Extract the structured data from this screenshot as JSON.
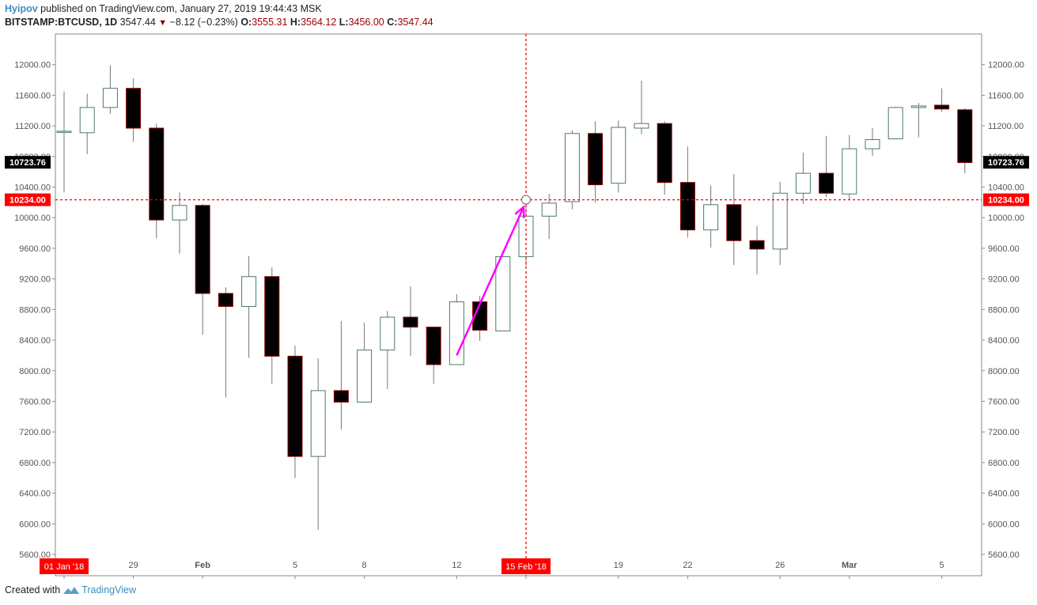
{
  "header": {
    "author": "Hyipov",
    "published_text": "published on TradingView.com, January 27, 2019 19:44:43 MSK",
    "symbol": "BITSTAMP:BTCUSD, 1D",
    "last_price": "3547.44",
    "change": "−8.12 (−0.23%)",
    "open_label": "O:",
    "open": "3555.31",
    "high_label": "H:",
    "high": "3564.12",
    "low_label": "L:",
    "low": "3456.00",
    "close_label": "C:",
    "close": "3547.44"
  },
  "footer": {
    "created_with": "Created with",
    "brand": "TradingView"
  },
  "colors": {
    "up_fill": "#ffffff",
    "up_border": "#4a7a6a",
    "down_fill": "#000000",
    "down_border": "#8b0000",
    "crosshair": "#ff0000",
    "arrow": "#ff00ff",
    "price_tag_black": "#000000",
    "price_tag_red": "#ff0000"
  },
  "chart_data": {
    "type": "candlestick",
    "ylim": [
      5600,
      12400
    ],
    "y_ticks": [
      "12000.00",
      "11600.00",
      "11200.00",
      "10800.00",
      "10400.00",
      "10000.00",
      "9600.00",
      "9200.00",
      "8800.00",
      "8400.00",
      "8000.00",
      "7600.00",
      "7200.00",
      "6800.00",
      "6400.00",
      "6000.00",
      "5600.00"
    ],
    "x_ticks": [
      {
        "label": "01 Jan '18",
        "index": 0,
        "highlight": true
      },
      {
        "label": "29",
        "index": 3
      },
      {
        "label": "Feb",
        "index": 6,
        "bold": true
      },
      {
        "label": "5",
        "index": 10
      },
      {
        "label": "8",
        "index": 13
      },
      {
        "label": "12",
        "index": 17
      },
      {
        "label": "15 Feb '18",
        "index": 20,
        "highlight": true
      },
      {
        "label": "19",
        "index": 24
      },
      {
        "label": "22",
        "index": 27
      },
      {
        "label": "26",
        "index": 31
      },
      {
        "label": "Mar",
        "index": 34,
        "bold": true
      },
      {
        "label": "5",
        "index": 38
      }
    ],
    "candles": [
      {
        "o": 11120,
        "h": 11650,
        "l": 10330,
        "c": 11130
      },
      {
        "o": 11110,
        "h": 11620,
        "l": 10830,
        "c": 11440
      },
      {
        "o": 11440,
        "h": 11990,
        "l": 11360,
        "c": 11690
      },
      {
        "o": 11690,
        "h": 11820,
        "l": 10990,
        "c": 11170
      },
      {
        "o": 11170,
        "h": 11230,
        "l": 9730,
        "c": 9970
      },
      {
        "o": 9970,
        "h": 10330,
        "l": 9530,
        "c": 10160
      },
      {
        "o": 10160,
        "h": 10180,
        "l": 8470,
        "c": 9010
      },
      {
        "o": 9010,
        "h": 9090,
        "l": 7650,
        "c": 8840
      },
      {
        "o": 8840,
        "h": 9500,
        "l": 8170,
        "c": 9230
      },
      {
        "o": 9230,
        "h": 9350,
        "l": 7830,
        "c": 8190
      },
      {
        "o": 8190,
        "h": 8330,
        "l": 6600,
        "c": 6880
      },
      {
        "o": 6880,
        "h": 8160,
        "l": 5920,
        "c": 7740
      },
      {
        "o": 7740,
        "h": 8650,
        "l": 7230,
        "c": 7590
      },
      {
        "o": 7590,
        "h": 8630,
        "l": 7590,
        "c": 8270
      },
      {
        "o": 8270,
        "h": 8780,
        "l": 7760,
        "c": 8700
      },
      {
        "o": 8700,
        "h": 9100,
        "l": 8190,
        "c": 8570
      },
      {
        "o": 8570,
        "h": 8570,
        "l": 7830,
        "c": 8080
      },
      {
        "o": 8080,
        "h": 9000,
        "l": 8080,
        "c": 8900
      },
      {
        "o": 8900,
        "h": 8980,
        "l": 8390,
        "c": 8530
      },
      {
        "o": 8520,
        "h": 9490,
        "l": 8520,
        "c": 9490
      },
      {
        "o": 9490,
        "h": 10250,
        "l": 9370,
        "c": 10020
      },
      {
        "o": 10020,
        "h": 10310,
        "l": 9720,
        "c": 10190
      },
      {
        "o": 10210,
        "h": 11140,
        "l": 10110,
        "c": 11100
      },
      {
        "o": 11100,
        "h": 11260,
        "l": 10200,
        "c": 10430
      },
      {
        "o": 10450,
        "h": 11270,
        "l": 10330,
        "c": 11180
      },
      {
        "o": 11170,
        "h": 11790,
        "l": 11090,
        "c": 11230
      },
      {
        "o": 11230,
        "h": 11260,
        "l": 10300,
        "c": 10460
      },
      {
        "o": 10460,
        "h": 10930,
        "l": 9740,
        "c": 9840
      },
      {
        "o": 9840,
        "h": 10420,
        "l": 9610,
        "c": 10170
      },
      {
        "o": 10170,
        "h": 10570,
        "l": 9380,
        "c": 9700
      },
      {
        "o": 9700,
        "h": 9890,
        "l": 9260,
        "c": 9590
      },
      {
        "o": 9590,
        "h": 10470,
        "l": 9380,
        "c": 10320
      },
      {
        "o": 10320,
        "h": 10850,
        "l": 10180,
        "c": 10580
      },
      {
        "o": 10580,
        "h": 11070,
        "l": 10270,
        "c": 10320
      },
      {
        "o": 10310,
        "h": 11080,
        "l": 10240,
        "c": 10900
      },
      {
        "o": 10900,
        "h": 11170,
        "l": 10810,
        "c": 11020
      },
      {
        "o": 11030,
        "h": 11450,
        "l": 11030,
        "c": 11440
      },
      {
        "o": 11440,
        "h": 11500,
        "l": 11050,
        "c": 11460
      },
      {
        "o": 11470,
        "h": 11690,
        "l": 11380,
        "c": 11420
      },
      {
        "o": 11410,
        "h": 11430,
        "l": 10580,
        "c": 10720
      }
    ],
    "last_price_label": "10723.76",
    "crosshair_price_label": "10234.00",
    "crosshair_price": 10234,
    "crosshair_index": 20,
    "arrow": {
      "from_index": 17,
      "from_price": 8200,
      "to_index": 20,
      "to_price": 10160
    },
    "last_price": 10723.76
  }
}
